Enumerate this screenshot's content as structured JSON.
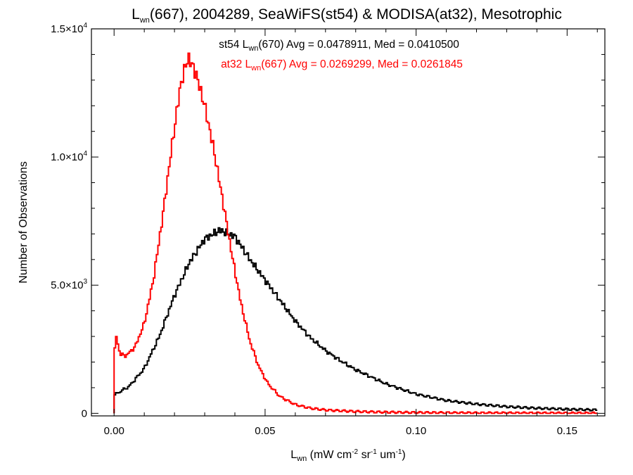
{
  "chart_data": {
    "type": "line",
    "style": "histogram-step",
    "title": {
      "main": "L",
      "sub": "wn",
      "rest": "(667), 2004289, SeaWiFS(st54) & MODISA(at32), Mesotrophic"
    },
    "xlabel": {
      "main": "L",
      "sub": "wn",
      "rest": " (mW cm",
      "sup1": "-2",
      "mid1": " sr",
      "sup2": "-1",
      "mid2": " um",
      "sup3": "-1",
      "end": ")"
    },
    "ylabel": "Number of Observations",
    "xlim": [
      -0.0075,
      0.1625
    ],
    "ylim": [
      -100,
      15000
    ],
    "x_ticks": [
      {
        "value": 0.0,
        "label": "0.00"
      },
      {
        "value": 0.05,
        "label": "0.05"
      },
      {
        "value": 0.1,
        "label": "0.10"
      },
      {
        "value": 0.15,
        "label": "0.15"
      }
    ],
    "x_minor_step": 0.01,
    "y_ticks": [
      {
        "value": 0,
        "mant": "0",
        "exp": ""
      },
      {
        "value": 5000,
        "mant": "5.0×10",
        "exp": "3"
      },
      {
        "value": 10000,
        "mant": "1.0×10",
        "exp": "4"
      },
      {
        "value": 15000,
        "mant": "1.5×10",
        "exp": "4"
      }
    ],
    "y_minor_step": 1000,
    "legend": [
      {
        "pre": "st54 L",
        "sub": "wn",
        "post": "(670) Avg = 0.0478911, Med = 0.0410500",
        "color": "#000000"
      },
      {
        "pre": "at32 L",
        "sub": "wn",
        "post": "(667) Avg = 0.0269299, Med = 0.0261845",
        "color": "#ff0000"
      }
    ],
    "bin_width": 0.0005,
    "series": [
      {
        "color": "#000000",
        "x": [
          0.0,
          0.002,
          0.005,
          0.01,
          0.015,
          0.02,
          0.025,
          0.03,
          0.035,
          0.04,
          0.045,
          0.05,
          0.055,
          0.06,
          0.065,
          0.07,
          0.075,
          0.08,
          0.09,
          0.1,
          0.11,
          0.12,
          0.13,
          0.14,
          0.15,
          0.16
        ],
        "y": [
          700,
          850,
          1050,
          1750,
          3000,
          4600,
          5900,
          6800,
          7150,
          6900,
          6000,
          5200,
          4400,
          3600,
          2950,
          2450,
          2050,
          1700,
          1150,
          750,
          500,
          360,
          260,
          200,
          160,
          130
        ]
      },
      {
        "color": "#ff0000",
        "x": [
          0.0,
          0.0005,
          0.002,
          0.004,
          0.007,
          0.01,
          0.013,
          0.016,
          0.019,
          0.022,
          0.0245,
          0.027,
          0.03,
          0.033,
          0.036,
          0.039,
          0.042,
          0.045,
          0.048,
          0.051,
          0.055,
          0.06,
          0.065,
          0.07,
          0.08,
          0.09,
          0.1,
          0.12,
          0.16
        ],
        "y": [
          1800,
          3150,
          2300,
          2250,
          2600,
          3500,
          5200,
          7600,
          10300,
          12800,
          13900,
          13300,
          12000,
          10300,
          8300,
          6200,
          4300,
          2800,
          1800,
          1150,
          650,
          340,
          200,
          130,
          70,
          45,
          30,
          15,
          5
        ]
      }
    ]
  }
}
